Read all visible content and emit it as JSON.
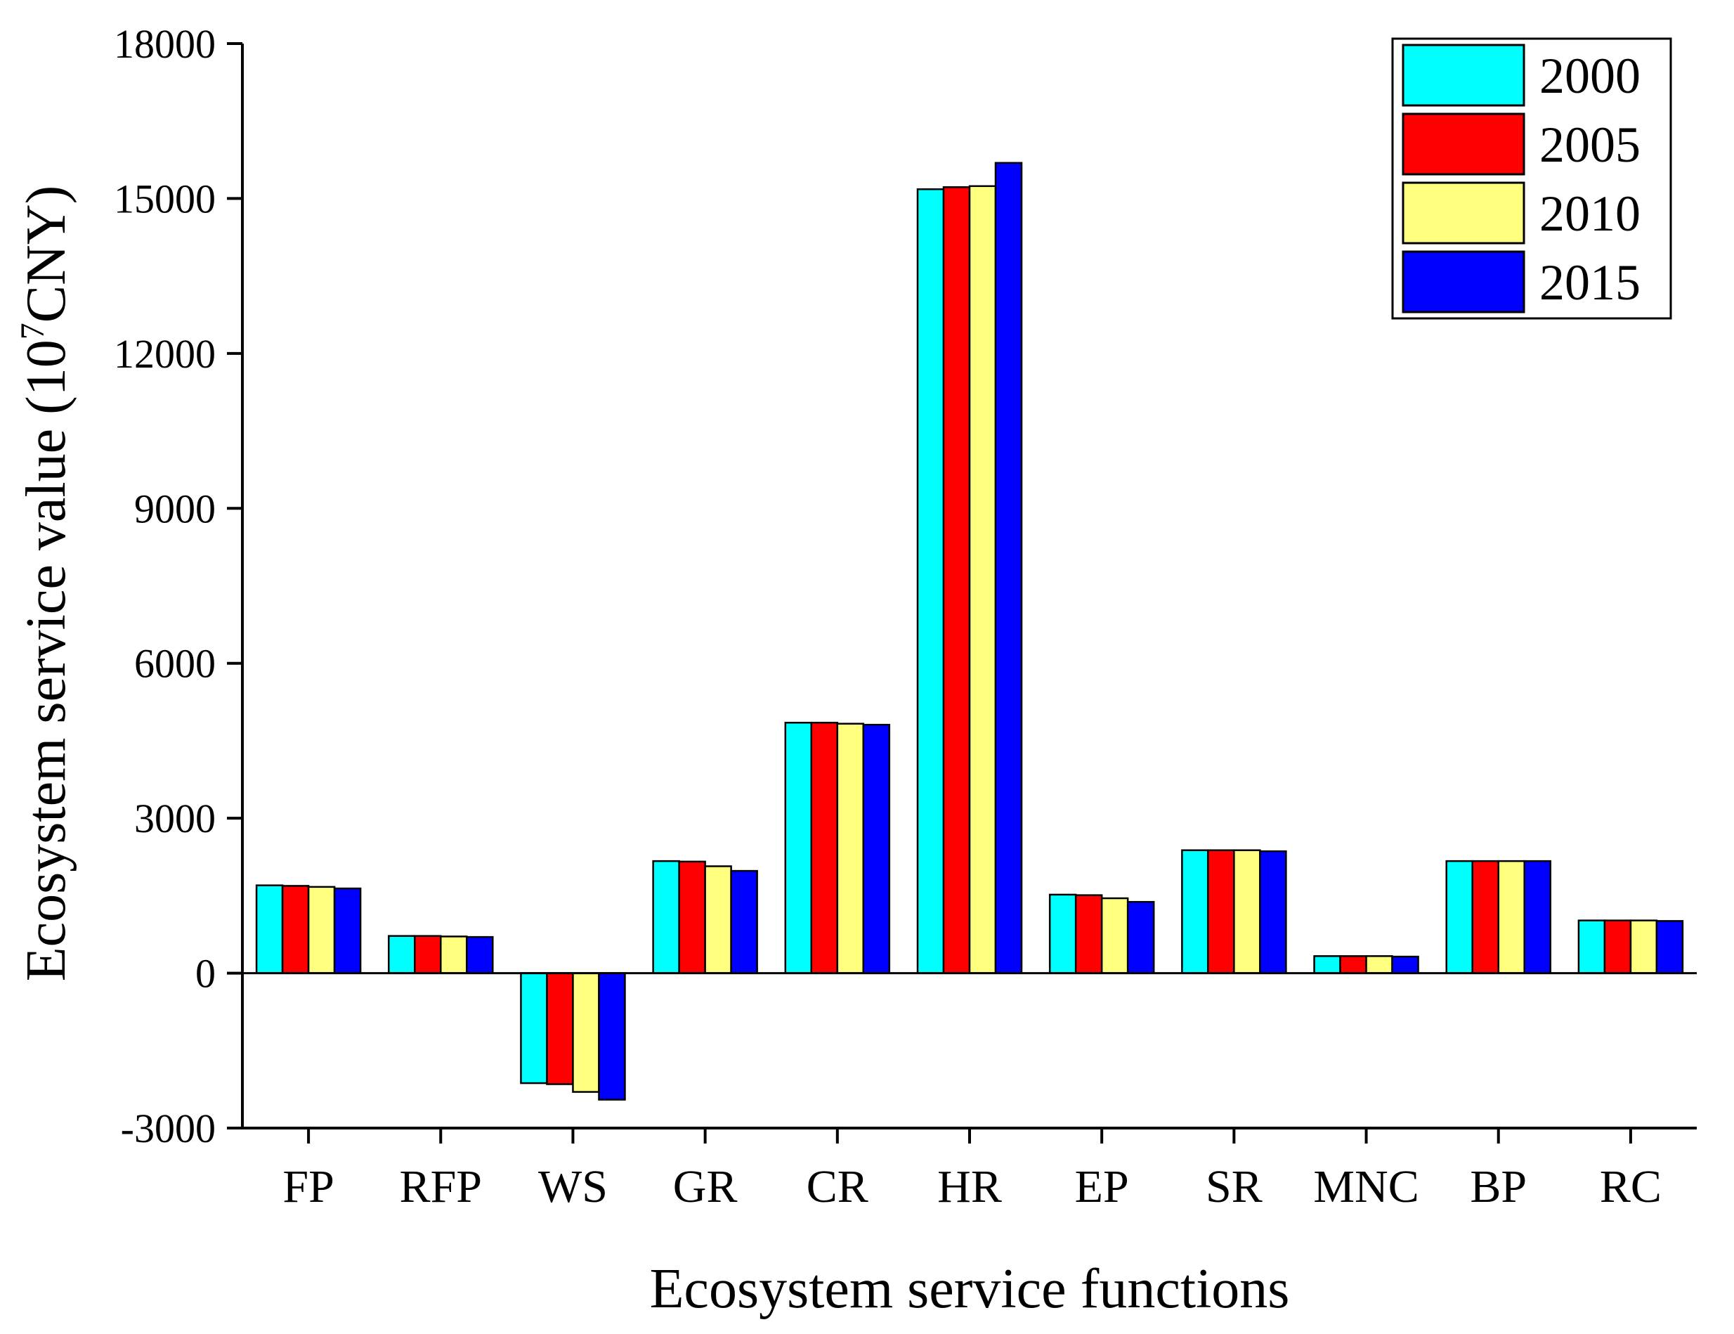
{
  "chart_data": {
    "type": "bar",
    "title": "",
    "xlabel": "Ecosystem service functions",
    "ylabel": {
      "prefix": "Ecosystem service value (10",
      "superscript": "7",
      "suffix": "CNY)"
    },
    "ylim": [
      -3000,
      18000
    ],
    "yticks": [
      -3000,
      0,
      3000,
      6000,
      9000,
      12000,
      15000,
      18000
    ],
    "categories": [
      "FP",
      "RFP",
      "WS",
      "GR",
      "CR",
      "HR",
      "EP",
      "SR",
      "MNC",
      "BP",
      "RC"
    ],
    "series": [
      {
        "name": "2000",
        "color": "#00FFFF",
        "values": [
          1700,
          720,
          -2130,
          2170,
          4850,
          15180,
          1520,
          2380,
          330,
          2170,
          1020
        ]
      },
      {
        "name": "2005",
        "color": "#FF0000",
        "values": [
          1690,
          720,
          -2150,
          2160,
          4850,
          15220,
          1510,
          2380,
          330,
          2170,
          1020
        ]
      },
      {
        "name": "2010",
        "color": "#FFFF80",
        "values": [
          1670,
          710,
          -2300,
          2070,
          4830,
          15240,
          1450,
          2380,
          330,
          2170,
          1020
        ]
      },
      {
        "name": "2015",
        "color": "#0000FF",
        "values": [
          1640,
          700,
          -2450,
          1980,
          4810,
          15690,
          1380,
          2360,
          320,
          2170,
          1010
        ]
      }
    ],
    "legend": "top-right",
    "grid": false
  }
}
